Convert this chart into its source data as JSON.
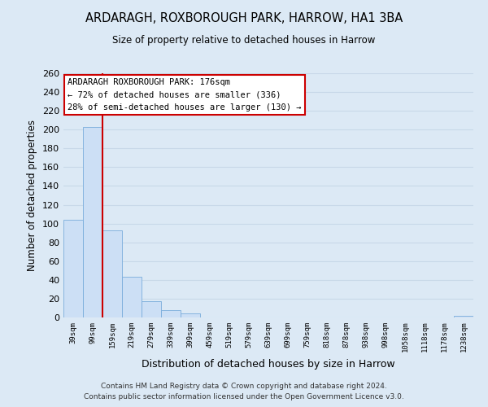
{
  "title": "ARDARAGH, ROXBOROUGH PARK, HARROW, HA1 3BA",
  "subtitle": "Size of property relative to detached houses in Harrow",
  "xlabel": "Distribution of detached houses by size in Harrow",
  "ylabel": "Number of detached properties",
  "bar_color": "#ccdff5",
  "bar_edge_color": "#7aaddb",
  "grid_color": "#c8d8e8",
  "bg_color": "#dce9f5",
  "plot_bg_color": "#dce9f5",
  "categories": [
    "39sqm",
    "99sqm",
    "159sqm",
    "219sqm",
    "279sqm",
    "339sqm",
    "399sqm",
    "459sqm",
    "519sqm",
    "579sqm",
    "639sqm",
    "699sqm",
    "759sqm",
    "818sqm",
    "878sqm",
    "938sqm",
    "998sqm",
    "1058sqm",
    "1118sqm",
    "1178sqm",
    "1238sqm"
  ],
  "values": [
    104,
    203,
    93,
    43,
    17,
    8,
    4,
    0,
    0,
    0,
    0,
    0,
    0,
    0,
    0,
    0,
    0,
    0,
    0,
    0,
    2
  ],
  "ylim": [
    0,
    260
  ],
  "yticks": [
    0,
    20,
    40,
    60,
    80,
    100,
    120,
    140,
    160,
    180,
    200,
    220,
    240,
    260
  ],
  "property_line_color": "#cc0000",
  "annotation_title": "ARDARAGH ROXBOROUGH PARK: 176sqm",
  "annotation_line1": "← 72% of detached houses are smaller (336)",
  "annotation_line2": "28% of semi-detached houses are larger (130) →",
  "footer_line1": "Contains HM Land Registry data © Crown copyright and database right 2024.",
  "footer_line2": "Contains public sector information licensed under the Open Government Licence v3.0."
}
